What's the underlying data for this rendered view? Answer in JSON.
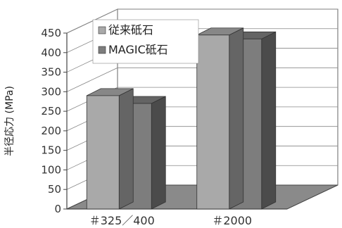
{
  "chart_data": {
    "type": "bar",
    "categories": [
      "＃325／400",
      "＃2000"
    ],
    "series": [
      {
        "name": "従来砥石",
        "values": [
          290,
          445
        ],
        "color": "#a9a9a9"
      },
      {
        "name": "MAGIC砥石",
        "values": [
          270,
          435
        ],
        "color": "#7d7d7d"
      }
    ],
    "ylabel": "半径応力 (MPa)",
    "xlabel": "",
    "ylim": [
      0,
      450
    ],
    "yticks": [
      0,
      50,
      100,
      150,
      200,
      250,
      300,
      350,
      400,
      450
    ],
    "grid": true,
    "legend_position": "top-left",
    "three_d": true
  }
}
